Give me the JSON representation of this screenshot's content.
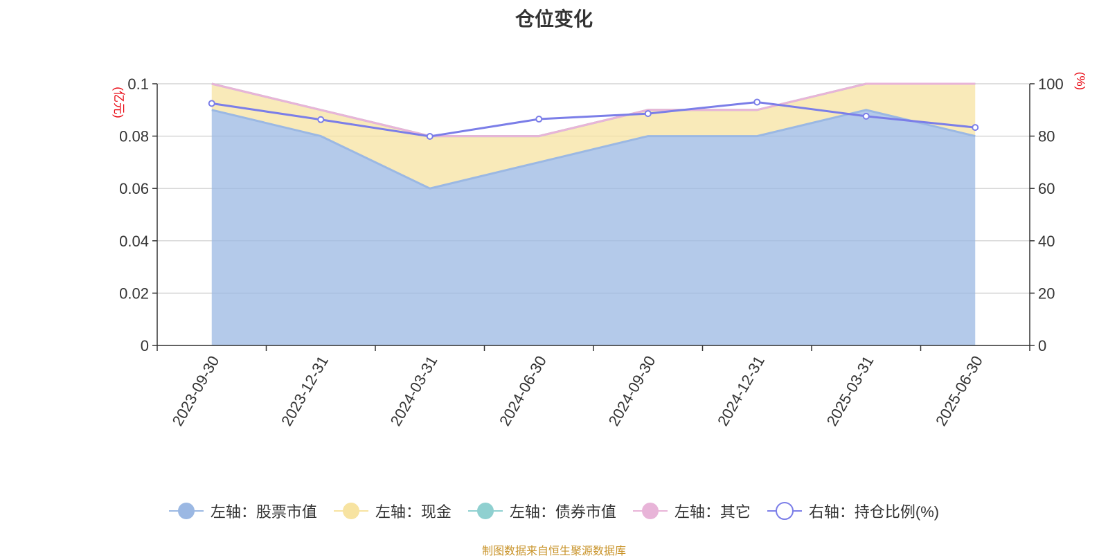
{
  "chart_data": {
    "type": "area",
    "title": "仓位变化",
    "categories": [
      "2023-09-30",
      "2023-12-31",
      "2024-03-31",
      "2024-06-30",
      "2024-09-30",
      "2024-12-31",
      "2025-03-31",
      "2025-06-30"
    ],
    "y_left": {
      "unit": "(亿元)",
      "ylim": [
        0,
        0.1
      ],
      "ticks": [
        "0",
        "0.02",
        "0.04",
        "0.06",
        "0.08",
        "0.1"
      ]
    },
    "y_right": {
      "unit": "(%)",
      "ylim": [
        0,
        100
      ],
      "ticks": [
        "0",
        "20",
        "40",
        "60",
        "80",
        "100"
      ]
    },
    "grid": true,
    "legend_position": "bottom",
    "series": [
      {
        "name": "左轴：股票市值",
        "axis": "left",
        "color": "#9bb8e3",
        "values": [
          0.09,
          0.08,
          0.06,
          0.07,
          0.08,
          0.08,
          0.09,
          0.08
        ]
      },
      {
        "name": "左轴：现金",
        "axis": "left",
        "color": "#f7e3a1",
        "values": [
          0.01,
          0.01,
          0.02,
          0.01,
          0.01,
          0.01,
          0.01,
          0.02
        ]
      },
      {
        "name": "左轴：债券市值",
        "axis": "left",
        "color": "#8fd0d0",
        "values": [
          0,
          0,
          0,
          0,
          0,
          0,
          0,
          0
        ]
      },
      {
        "name": "左轴：其它",
        "axis": "left",
        "color": "#e8b4d8",
        "values": [
          0,
          0,
          0,
          0,
          0,
          0,
          0,
          0
        ]
      },
      {
        "name": "右轴：持仓比例(%)",
        "axis": "right",
        "color": "#7b7ee8",
        "values": [
          92.5,
          86.3,
          79.9,
          86.5,
          88.6,
          93.0,
          87.6,
          83.3
        ]
      }
    ]
  },
  "source": "制图数据来自恒生聚源数据库"
}
